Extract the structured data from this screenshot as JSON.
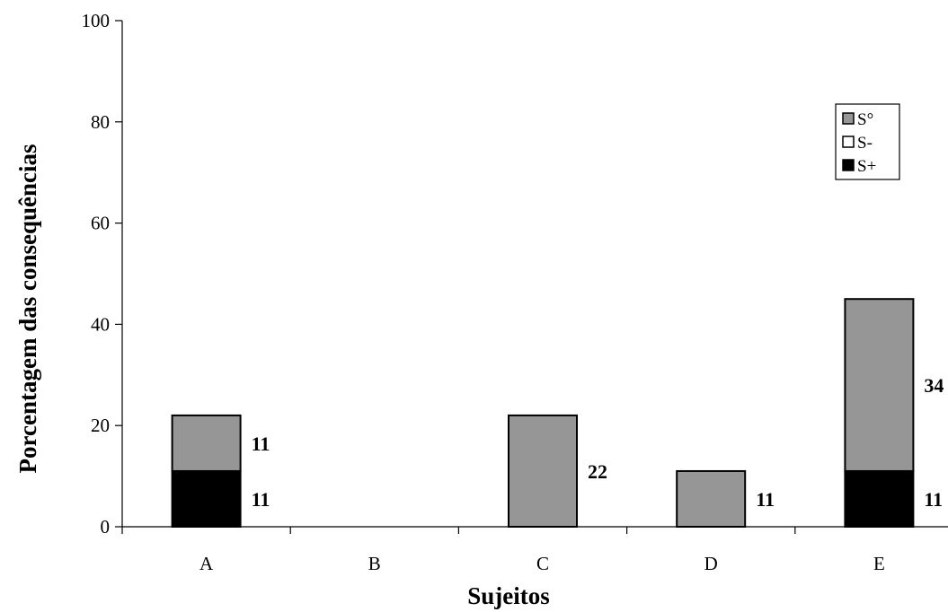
{
  "chart_data": {
    "type": "bar",
    "stacked": true,
    "categories": [
      "A",
      "B",
      "C",
      "D",
      "E"
    ],
    "series": [
      {
        "name": "S+",
        "values": [
          11,
          0,
          0,
          0,
          11
        ],
        "color": "#000000"
      },
      {
        "name": "S-",
        "values": [
          0,
          0,
          0,
          0,
          0
        ],
        "color": "#ffffff"
      },
      {
        "name": "S°",
        "values": [
          11,
          0,
          22,
          11,
          34
        ],
        "color": "#969696"
      }
    ],
    "data_labels": [
      {
        "category": "A",
        "series": "S+",
        "text": "11"
      },
      {
        "category": "A",
        "series": "S°",
        "text": "11"
      },
      {
        "category": "C",
        "series": "S°",
        "text": "22"
      },
      {
        "category": "D",
        "series": "S°",
        "text": "11"
      },
      {
        "category": "E",
        "series": "S+",
        "text": "11"
      },
      {
        "category": "E",
        "series": "S°",
        "text": "34"
      }
    ],
    "xlabel": "Sujeitos",
    "ylabel": "Porcentagem das consequências",
    "ylim": [
      0,
      100
    ],
    "yticks": [
      0,
      20,
      40,
      60,
      80,
      100
    ],
    "legend": {
      "placement": "top-right",
      "order": [
        "S°",
        "S-",
        "S+"
      ]
    },
    "grid": false
  }
}
